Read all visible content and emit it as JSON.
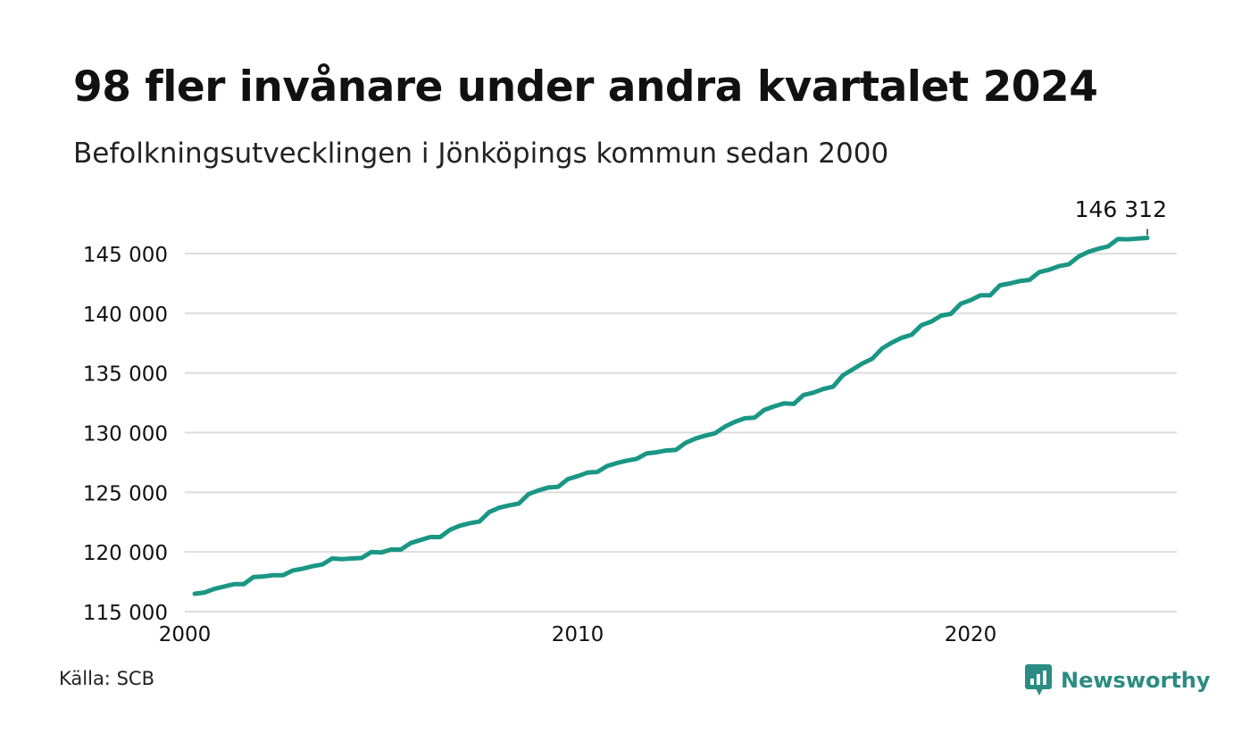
{
  "title": "98 fler invånare under andra kvartalet 2024",
  "subtitle": "Befolkningsutvecklingen i Jönköpings kommun sedan 2000",
  "source": {
    "label": "Källa:",
    "value": "SCB"
  },
  "brand": {
    "name": "Newsworthy",
    "icon": "bar-chart-speech-bubble-icon"
  },
  "colors": {
    "line": "#1a9685",
    "grid": "#dddddd",
    "brand": "#2a8c82",
    "text": "#111111"
  },
  "chart_data": {
    "type": "line",
    "title": "98 fler invånare under andra kvartalet 2024",
    "subtitle": "Befolkningsutvecklingen i Jönköpings kommun sedan 2000",
    "xlabel": "",
    "ylabel": "",
    "xlim": [
      2000,
      2025.25
    ],
    "ylim": [
      115000,
      146500
    ],
    "x_ticks": [
      2000,
      2010,
      2020
    ],
    "y_ticks": [
      115000,
      120000,
      125000,
      130000,
      135000,
      140000,
      145000
    ],
    "y_tick_labels": [
      "115 000",
      "120 000",
      "125 000",
      "130 000",
      "135 000",
      "140 000",
      "145 000"
    ],
    "grid": true,
    "end_label": "146 312",
    "series": [
      {
        "values": [
          {
            "x": 2000.25,
            "y": 116500
          },
          {
            "x": 2000.5,
            "y": 116600
          },
          {
            "x": 2000.75,
            "y": 116900
          },
          {
            "x": 2001.0,
            "y": 117100
          },
          {
            "x": 2001.25,
            "y": 117300
          },
          {
            "x": 2001.5,
            "y": 117300
          },
          {
            "x": 2001.75,
            "y": 117900
          },
          {
            "x": 2002.0,
            "y": 117950
          },
          {
            "x": 2002.25,
            "y": 118050
          },
          {
            "x": 2002.5,
            "y": 118050
          },
          {
            "x": 2002.75,
            "y": 118450
          },
          {
            "x": 2003.0,
            "y": 118600
          },
          {
            "x": 2003.25,
            "y": 118800
          },
          {
            "x": 2003.5,
            "y": 118950
          },
          {
            "x": 2003.75,
            "y": 119450
          },
          {
            "x": 2004.0,
            "y": 119400
          },
          {
            "x": 2004.25,
            "y": 119450
          },
          {
            "x": 2004.5,
            "y": 119500
          },
          {
            "x": 2004.75,
            "y": 120000
          },
          {
            "x": 2005.0,
            "y": 119950
          },
          {
            "x": 2005.25,
            "y": 120200
          },
          {
            "x": 2005.5,
            "y": 120200
          },
          {
            "x": 2005.75,
            "y": 120750
          },
          {
            "x": 2006.0,
            "y": 121000
          },
          {
            "x": 2006.25,
            "y": 121250
          },
          {
            "x": 2006.5,
            "y": 121250
          },
          {
            "x": 2006.75,
            "y": 121850
          },
          {
            "x": 2007.0,
            "y": 122200
          },
          {
            "x": 2007.25,
            "y": 122400
          },
          {
            "x": 2007.5,
            "y": 122550
          },
          {
            "x": 2007.75,
            "y": 123350
          },
          {
            "x": 2008.0,
            "y": 123700
          },
          {
            "x": 2008.25,
            "y": 123900
          },
          {
            "x": 2008.5,
            "y": 124050
          },
          {
            "x": 2008.75,
            "y": 124850
          },
          {
            "x": 2009.0,
            "y": 125150
          },
          {
            "x": 2009.25,
            "y": 125400
          },
          {
            "x": 2009.5,
            "y": 125450
          },
          {
            "x": 2009.75,
            "y": 126100
          },
          {
            "x": 2010.0,
            "y": 126350
          },
          {
            "x": 2010.25,
            "y": 126650
          },
          {
            "x": 2010.5,
            "y": 126700
          },
          {
            "x": 2010.75,
            "y": 127200
          },
          {
            "x": 2011.0,
            "y": 127450
          },
          {
            "x": 2011.25,
            "y": 127650
          },
          {
            "x": 2011.5,
            "y": 127800
          },
          {
            "x": 2011.75,
            "y": 128250
          },
          {
            "x": 2012.0,
            "y": 128350
          },
          {
            "x": 2012.25,
            "y": 128500
          },
          {
            "x": 2012.5,
            "y": 128550
          },
          {
            "x": 2012.75,
            "y": 129150
          },
          {
            "x": 2013.0,
            "y": 129500
          },
          {
            "x": 2013.25,
            "y": 129750
          },
          {
            "x": 2013.5,
            "y": 129950
          },
          {
            "x": 2013.75,
            "y": 130500
          },
          {
            "x": 2014.0,
            "y": 130900
          },
          {
            "x": 2014.25,
            "y": 131200
          },
          {
            "x": 2014.5,
            "y": 131250
          },
          {
            "x": 2014.75,
            "y": 131900
          },
          {
            "x": 2015.0,
            "y": 132200
          },
          {
            "x": 2015.25,
            "y": 132450
          },
          {
            "x": 2015.5,
            "y": 132400
          },
          {
            "x": 2015.75,
            "y": 133150
          },
          {
            "x": 2016.0,
            "y": 133350
          },
          {
            "x": 2016.25,
            "y": 133650
          },
          {
            "x": 2016.5,
            "y": 133850
          },
          {
            "x": 2016.75,
            "y": 134800
          },
          {
            "x": 2017.0,
            "y": 135300
          },
          {
            "x": 2017.25,
            "y": 135800
          },
          {
            "x": 2017.5,
            "y": 136200
          },
          {
            "x": 2017.75,
            "y": 137050
          },
          {
            "x": 2018.0,
            "y": 137550
          },
          {
            "x": 2018.25,
            "y": 137950
          },
          {
            "x": 2018.5,
            "y": 138200
          },
          {
            "x": 2018.75,
            "y": 139000
          },
          {
            "x": 2019.0,
            "y": 139300
          },
          {
            "x": 2019.25,
            "y": 139800
          },
          {
            "x": 2019.5,
            "y": 139950
          },
          {
            "x": 2019.75,
            "y": 140800
          },
          {
            "x": 2020.0,
            "y": 141100
          },
          {
            "x": 2020.25,
            "y": 141500
          },
          {
            "x": 2020.5,
            "y": 141500
          },
          {
            "x": 2020.75,
            "y": 142350
          },
          {
            "x": 2021.0,
            "y": 142500
          },
          {
            "x": 2021.25,
            "y": 142700
          },
          {
            "x": 2021.5,
            "y": 142800
          },
          {
            "x": 2021.75,
            "y": 143450
          },
          {
            "x": 2022.0,
            "y": 143650
          },
          {
            "x": 2022.25,
            "y": 143950
          },
          {
            "x": 2022.5,
            "y": 144100
          },
          {
            "x": 2022.75,
            "y": 144750
          },
          {
            "x": 2023.0,
            "y": 145150
          },
          {
            "x": 2023.25,
            "y": 145400
          },
          {
            "x": 2023.5,
            "y": 145600
          },
          {
            "x": 2023.75,
            "y": 146214
          },
          {
            "x": 2024.0,
            "y": 146200
          },
          {
            "x": 2024.25,
            "y": 146250
          },
          {
            "x": 2024.5,
            "y": 146312
          }
        ]
      }
    ]
  }
}
